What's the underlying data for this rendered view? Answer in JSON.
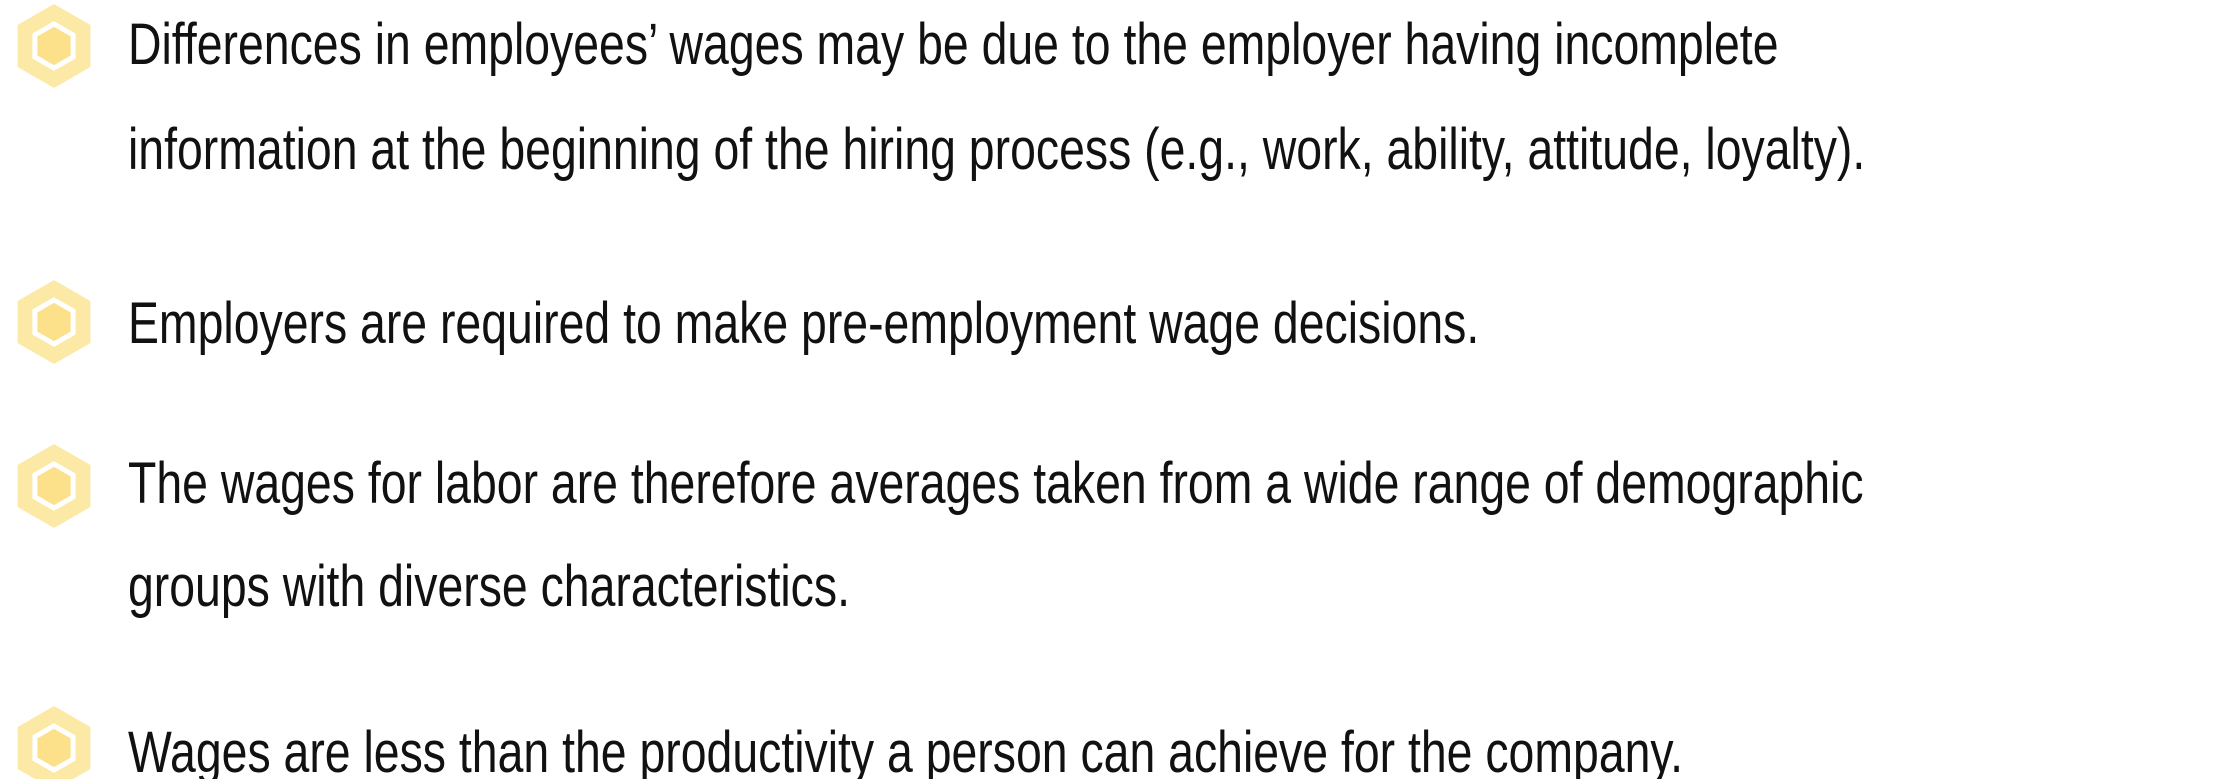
{
  "items": [
    {
      "lines": [
        "Differences in employees’ wages may be due to the employer having incomplete",
        "information at the beginning of the hiring process (e.g., work, ability, attitude, loyalty)."
      ]
    },
    {
      "lines": [
        "Employers are required to make pre-employment wage decisions."
      ]
    },
    {
      "lines": [
        "The wages for labor are therefore averages taken from a wide range of demographic",
        "groups with diverse characteristics."
      ]
    },
    {
      "lines": [
        "Wages are less than the productivity a person can achieve for the company."
      ]
    }
  ]
}
